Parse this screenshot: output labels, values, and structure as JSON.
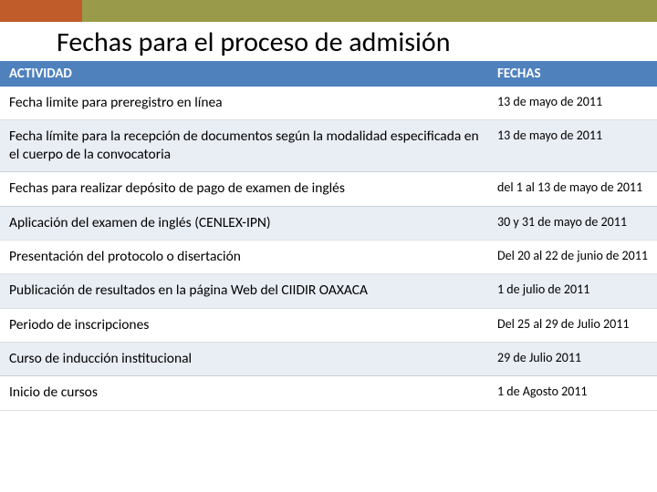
{
  "colors": {
    "top_accent": "#c05b2a",
    "top_main": "#9a9a4b",
    "header_bg": "#4f81bd",
    "row_alt_bg": "#e9edf4",
    "row_bg": "#ffffff"
  },
  "title": "Fechas para el proceso de admisión",
  "columns": {
    "activity": "ACTIVIDAD",
    "dates": "FECHAS"
  },
  "rows": [
    {
      "activity": "Fecha limite para preregistro en línea",
      "date": "13 de mayo de 2011"
    },
    {
      "activity": "Fecha límite para la recepción de documentos según la modalidad especificada  en el cuerpo de la convocatoria",
      "date": "13 de mayo de 2011"
    },
    {
      "activity": "Fechas para realizar depósito  de pago de examen de inglés",
      "date": "del 1 al 13 de mayo de 2011"
    },
    {
      "activity": "Aplicación del examen de inglés (CENLEX-IPN)",
      "date": "30 y 31 de mayo de 2011"
    },
    {
      "activity": "Presentación del protocolo  o disertación",
      "date": "Del 20 al 22 de junio de 2011"
    },
    {
      "activity": "Publicación de resultados  en la página Web  del CIIDIR OAXACA",
      "date": "1 de julio de 2011"
    },
    {
      "activity": "Periodo de inscripciones",
      "date": "Del 25 al 29 de Julio 2011"
    },
    {
      "activity": "Curso de inducción institucional",
      "date": "29 de Julio 2011"
    },
    {
      "activity": "Inicio de cursos",
      "date": "1 de Agosto 2011"
    }
  ]
}
